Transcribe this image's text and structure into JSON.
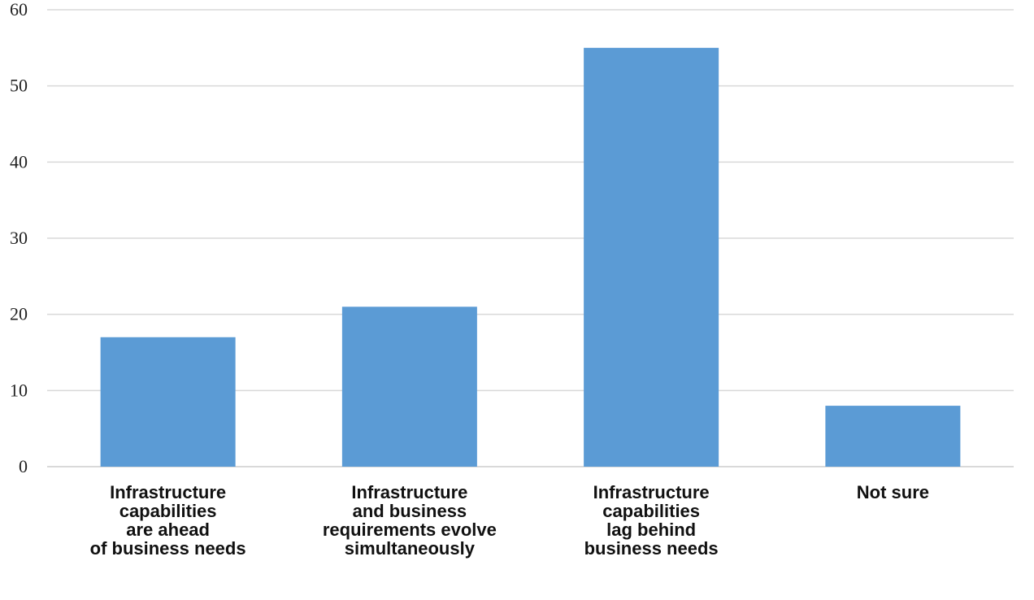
{
  "chart_data": {
    "type": "bar",
    "categories": [
      [
        "Infrastructure",
        "capabilities",
        "are ahead",
        "of business needs"
      ],
      [
        "Infrastructure",
        "and business",
        "requirements evolve",
        "simultaneously"
      ],
      [
        "Infrastructure",
        "capabilities",
        "lag behind",
        "business needs"
      ],
      [
        "Not sure"
      ]
    ],
    "values": [
      17,
      21,
      55,
      8
    ],
    "ylim": [
      0,
      60
    ],
    "yticks": [
      0,
      10,
      20,
      30,
      40,
      50,
      60
    ],
    "grid": true,
    "bar_color": "#5b9bd5",
    "grid_color": "#d9d9d9"
  }
}
